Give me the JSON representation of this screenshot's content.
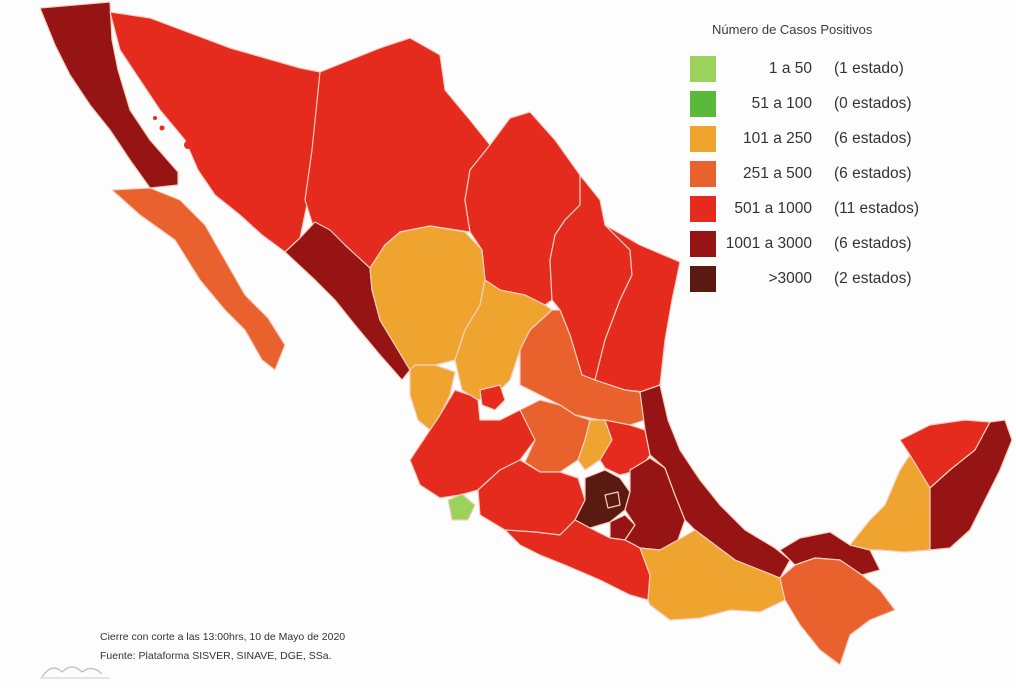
{
  "legend": {
    "title": "Número de Casos Positivos",
    "items": [
      {
        "range": "1 a 50",
        "count": "(1 estado)",
        "color": "#9bd25c"
      },
      {
        "range": "51 a 100",
        "count": "(0 estados)",
        "color": "#5ab83a"
      },
      {
        "range": "101 a 250",
        "count": "(6 estados)",
        "color": "#efa42f"
      },
      {
        "range": "251 a 500",
        "count": "(6 estados)",
        "color": "#e9612c"
      },
      {
        "range": "501 a 1000",
        "count": "(11 estados)",
        "color": "#e52a1e"
      },
      {
        "range": "1001 a 3000",
        "count": "(6 estados)",
        "color": "#971414"
      },
      {
        "range": ">3000",
        "count": "(2 estados)",
        "color": "#5a1a12"
      }
    ]
  },
  "footer": {
    "line1": "Cierre con corte a las 13:00hrs, 10 de Mayo de 2020",
    "line2": "Fuente: Plataforma SISVER, SINAVE, DGE, SSa."
  }
}
